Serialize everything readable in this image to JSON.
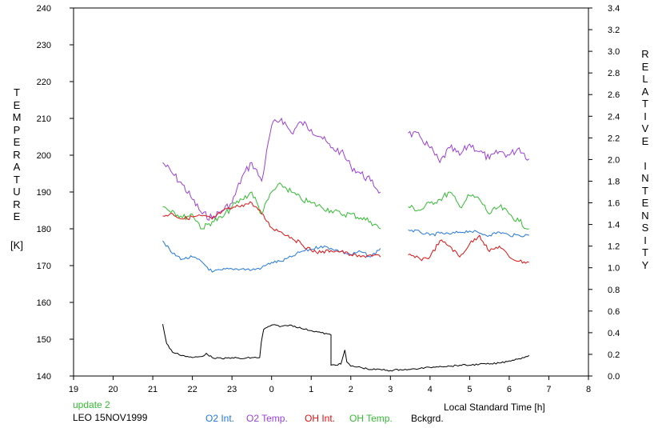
{
  "chart_data": {
    "type": "line",
    "title": "",
    "xlabel": "Local Standard Time [h]",
    "ylabel_left_letters": "TEMPERATURE",
    "ylabel_left_unit": "[K]",
    "ylabel_right_letters": "RELATIVE INTENSITY",
    "x_tick_labels": [
      "19",
      "20",
      "21",
      "22",
      "23",
      "0",
      "1",
      "2",
      "3",
      "4",
      "5",
      "6",
      "7",
      "8"
    ],
    "y_left_ticks": [
      "140",
      "150",
      "160",
      "170",
      "180",
      "190",
      "200",
      "210",
      "220",
      "230",
      "240"
    ],
    "y_right_ticks": [
      "0.0",
      "0.2",
      "0.4",
      "0.6",
      "0.8",
      "1.0",
      "1.2",
      "1.4",
      "1.6",
      "1.8",
      "2.0",
      "2.2",
      "2.4",
      "2.6",
      "2.8",
      "3.0",
      "3.2",
      "3.4"
    ],
    "xlim": [
      19,
      32
    ],
    "ylim_left": [
      140,
      240
    ],
    "ylim_right": [
      0,
      3.4
    ],
    "x_note": "x values in hours of local standard time, continuing past midnight (24 = 0, 25 = 1, ...)",
    "series": [
      {
        "name": "O2 Temp.",
        "color": "#9b3fd6",
        "axis": "left",
        "segments": [
          {
            "x": [
              21.25,
              21.5,
              21.75,
              22.0,
              22.25,
              22.5,
              22.75,
              23.0,
              23.25,
              23.5,
              23.75,
              24.0,
              24.25,
              24.5,
              24.75,
              25.0,
              25.25,
              25.5,
              25.75,
              26.0,
              26.25,
              26.5,
              26.75
            ],
            "y": [
              198,
              195,
              192,
              188,
              184,
              183,
              185,
              187,
              194,
              198,
              193,
              208,
              210,
              206,
              209,
              207,
              205,
              202,
              201,
              197,
              195,
              193,
              190
            ]
          },
          {
            "x": [
              27.45,
              27.75,
              28.0,
              28.25,
              28.5,
              28.75,
              29.0,
              29.25,
              29.5,
              29.75,
              30.0,
              30.25,
              30.5
            ],
            "y": [
              206,
              205,
              202,
              198,
              202,
              200,
              203,
              201,
              199,
              201,
              200,
              202,
              199
            ]
          }
        ]
      },
      {
        "name": "OH Temp.",
        "color": "#33bb33",
        "axis": "left",
        "segments": [
          {
            "x": [
              21.25,
              21.5,
              21.75,
              22.0,
              22.25,
              22.5,
              22.75,
              23.0,
              23.25,
              23.5,
              23.75,
              24.0,
              24.25,
              24.5,
              24.75,
              25.0,
              25.25,
              25.5,
              25.75,
              26.0,
              26.25,
              26.5,
              26.75
            ],
            "y": [
              186,
              185,
              183,
              184,
              180,
              182,
              183,
              186,
              188,
              190,
              184,
              190,
              192,
              190,
              188,
              187,
              186,
              185,
              184,
              184,
              183,
              182,
              180
            ]
          },
          {
            "x": [
              27.45,
              27.75,
              28.0,
              28.25,
              28.5,
              28.75,
              29.0,
              29.25,
              29.5,
              29.75,
              30.0,
              30.25,
              30.5
            ],
            "y": [
              186,
              185,
              187,
              188,
              190,
              186,
              189,
              188,
              184,
              186,
              184,
              182,
              180
            ]
          }
        ]
      },
      {
        "name": "O2 Int.",
        "color": "#2277dd",
        "axis": "right",
        "segments": [
          {
            "x": [
              21.25,
              21.5,
              21.75,
              22.0,
              22.25,
              22.5,
              22.75,
              23.0,
              23.25,
              23.5,
              23.75,
              24.0,
              24.25,
              24.5,
              24.75,
              25.0,
              25.25,
              25.5,
              25.75,
              26.0,
              26.25,
              26.5,
              26.75
            ],
            "y": [
              1.25,
              1.13,
              1.08,
              1.1,
              1.05,
              0.96,
              0.98,
              0.99,
              0.99,
              0.98,
              1.0,
              1.05,
              1.06,
              1.1,
              1.15,
              1.17,
              1.2,
              1.18,
              1.15,
              1.12,
              1.15,
              1.1,
              1.18
            ]
          },
          {
            "x": [
              27.45,
              27.75,
              28.0,
              28.25,
              28.5,
              28.75,
              29.0,
              29.25,
              29.5,
              29.75,
              30.0,
              30.25,
              30.5
            ],
            "y": [
              1.35,
              1.33,
              1.3,
              1.32,
              1.31,
              1.33,
              1.34,
              1.32,
              1.3,
              1.33,
              1.3,
              1.3,
              1.3
            ]
          }
        ]
      },
      {
        "name": "OH Int.",
        "color": "#dd1111",
        "axis": "right",
        "segments": [
          {
            "x": [
              21.25,
              21.5,
              21.75,
              22.0,
              22.25,
              22.5,
              22.75,
              23.0,
              23.25,
              23.5,
              23.75,
              24.0,
              24.25,
              24.5,
              24.75,
              25.0,
              25.25,
              25.5,
              25.75,
              26.0,
              26.25,
              26.5,
              26.75
            ],
            "y": [
              1.48,
              1.5,
              1.45,
              1.47,
              1.48,
              1.45,
              1.52,
              1.55,
              1.58,
              1.6,
              1.5,
              1.37,
              1.33,
              1.28,
              1.22,
              1.16,
              1.14,
              1.16,
              1.15,
              1.12,
              1.1,
              1.12,
              1.1
            ]
          },
          {
            "x": [
              27.45,
              27.75,
              28.0,
              28.25,
              28.5,
              28.75,
              29.0,
              29.25,
              29.5,
              29.75,
              30.0,
              30.25,
              30.5
            ],
            "y": [
              1.12,
              1.08,
              1.1,
              1.25,
              1.2,
              1.1,
              1.22,
              1.3,
              1.15,
              1.2,
              1.1,
              1.06,
              1.05
            ]
          }
        ]
      },
      {
        "name": "Bckgrd.",
        "color": "#000000",
        "axis": "right",
        "segments": [
          {
            "x": [
              21.25,
              21.35,
              21.5,
              21.75,
              22.0,
              22.25,
              22.35,
              22.5,
              22.75,
              23.0,
              23.25,
              23.5,
              23.7,
              23.74,
              23.8,
              24.0,
              24.25,
              24.5,
              24.75,
              25.0,
              25.25,
              25.5,
              25.5,
              25.75,
              25.85,
              25.9,
              26.0,
              26.25,
              26.5,
              26.75,
              27.0,
              27.25,
              27.5,
              27.75,
              28.0,
              28.25,
              28.5,
              28.75,
              29.0,
              29.25,
              29.5,
              29.75,
              30.0,
              30.25,
              30.5
            ],
            "y": [
              0.48,
              0.3,
              0.22,
              0.19,
              0.17,
              0.18,
              0.21,
              0.17,
              0.16,
              0.17,
              0.16,
              0.17,
              0.17,
              0.31,
              0.43,
              0.47,
              0.46,
              0.47,
              0.44,
              0.42,
              0.4,
              0.38,
              0.1,
              0.11,
              0.24,
              0.13,
              0.09,
              0.08,
              0.06,
              0.06,
              0.05,
              0.06,
              0.06,
              0.07,
              0.08,
              0.09,
              0.09,
              0.1,
              0.1,
              0.11,
              0.11,
              0.12,
              0.14,
              0.16,
              0.19
            ]
          }
        ]
      }
    ],
    "legend_placement": "bottom",
    "grid": false
  },
  "footer": {
    "update": "update 2",
    "station": "LEO 15NOV1999",
    "legend": [
      {
        "label": "O2 Int.",
        "color": "#2277dd"
      },
      {
        "label": "O2 Temp.",
        "color": "#9b3fd6"
      },
      {
        "label": "OH Int.",
        "color": "#dd1111"
      },
      {
        "label": "OH Temp.",
        "color": "#33bb33"
      },
      {
        "label": "Bckgrd.",
        "color": "#000000"
      }
    ]
  }
}
